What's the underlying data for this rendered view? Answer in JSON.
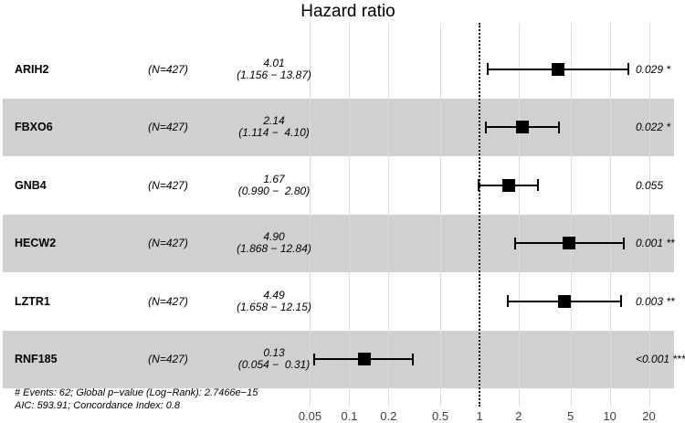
{
  "title": "Hazard ratio",
  "chart_data": {
    "type": "forest",
    "title": "Hazard ratio",
    "x_scale": "log10",
    "x_ticks": [
      0.05,
      0.1,
      0.2,
      0.5,
      1,
      2,
      5,
      10,
      20
    ],
    "x_tick_labels": [
      "0.05",
      "0.1",
      "0.2",
      "0.5",
      "1",
      "2",
      "5",
      "10",
      "20"
    ],
    "reference_value": 1,
    "rows": [
      {
        "gene": "ARIH2",
        "group_n": "(N=427)",
        "hr": 4.01,
        "ci_low": 1.156,
        "ci_high": 13.87,
        "hr_label": "4.01",
        "ci_label": "(1.156 − 13.87)",
        "p_value": "0.029",
        "significance": "*",
        "shaded": false
      },
      {
        "gene": "FBXO6",
        "group_n": "(N=427)",
        "hr": 2.14,
        "ci_low": 1.114,
        "ci_high": 4.1,
        "hr_label": "2.14",
        "ci_label": "(1.114 −  4.10)",
        "p_value": "0.022",
        "significance": "*",
        "shaded": true
      },
      {
        "gene": "GNB4",
        "group_n": "(N=427)",
        "hr": 1.67,
        "ci_low": 0.99,
        "ci_high": 2.8,
        "hr_label": "1.67",
        "ci_label": "(0.990 −  2.80)",
        "p_value": "0.055",
        "significance": "",
        "shaded": false
      },
      {
        "gene": "HECW2",
        "group_n": "(N=427)",
        "hr": 4.9,
        "ci_low": 1.868,
        "ci_high": 12.84,
        "hr_label": "4.90",
        "ci_label": "(1.868 − 12.84)",
        "p_value": "0.001",
        "significance": "**",
        "shaded": true
      },
      {
        "gene": "LZTR1",
        "group_n": "(N=427)",
        "hr": 4.49,
        "ci_low": 1.658,
        "ci_high": 12.15,
        "hr_label": "4.49",
        "ci_label": "(1.658 − 12.15)",
        "p_value": "0.003",
        "significance": "**",
        "shaded": false
      },
      {
        "gene": "RNF185",
        "group_n": "(N=427)",
        "hr": 0.13,
        "ci_low": 0.054,
        "ci_high": 0.31,
        "hr_label": "0.13",
        "ci_label": "(0.054 −  0.31)",
        "p_value": "<0.001",
        "significance": "***",
        "shaded": true
      }
    ],
    "footnote_line1": "# Events: 62; Global p−value (Log−Rank): 2.7466e−15",
    "footnote_line2": "AIC: 593.91; Concordance Index: 0.8"
  },
  "colors": {
    "band": "#d0d0d0",
    "gridline": "#dcdcdc",
    "reference_line": "#000000",
    "marker": "#000000",
    "tick_label": "#3d3d3d"
  }
}
